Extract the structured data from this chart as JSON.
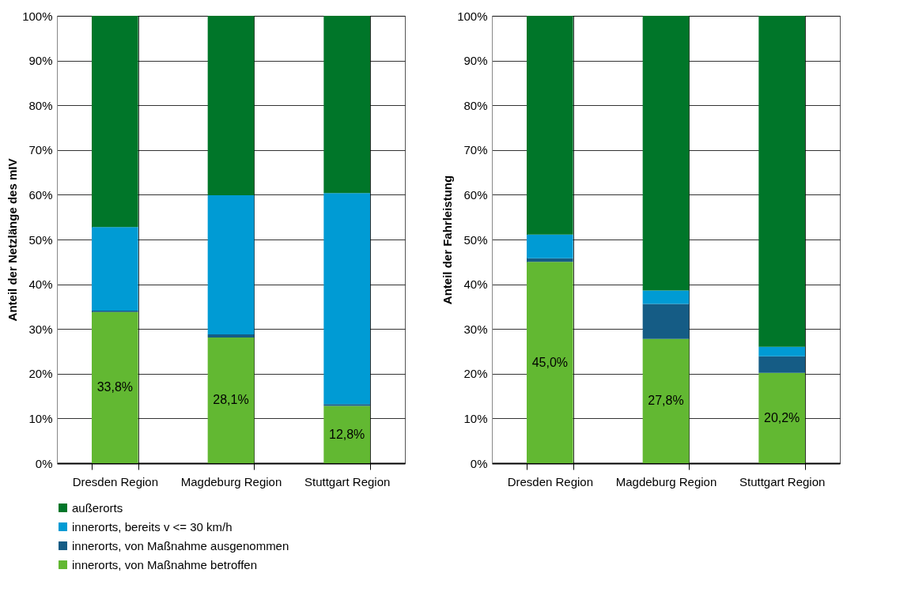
{
  "chart_data": [
    {
      "type": "bar",
      "stacked": true,
      "ylabel": "Anteil der Netzlänge des mIV",
      "categories": [
        "Dresden Region",
        "Magdeburg Region",
        "Stuttgart Region"
      ],
      "series": [
        {
          "name": "innerorts, von Maßnahme betroffen",
          "color": "#62b832",
          "values": [
            33.8,
            28.1,
            12.8
          ],
          "value_labels": [
            "33,8%",
            "28,1%",
            "12,8%"
          ]
        },
        {
          "name": "innerorts, von Maßnahme ausgenommen",
          "color": "#155c85",
          "values": [
            0.3,
            0.7,
            0.4
          ]
        },
        {
          "name": "innerorts, bereits v <= 30 km/h",
          "color": "#009bd4",
          "values": [
            18.7,
            31.1,
            47.2
          ]
        },
        {
          "name": "außerorts",
          "color": "#007629",
          "values": [
            47.2,
            40.1,
            39.6
          ]
        }
      ],
      "ylim": [
        0,
        100
      ],
      "yticks": [
        {
          "value": 0,
          "label": "0%"
        },
        {
          "value": 10,
          "label": "10%"
        },
        {
          "value": 20,
          "label": "20%"
        },
        {
          "value": 30,
          "label": "30%"
        },
        {
          "value": 40,
          "label": "40%"
        },
        {
          "value": 50,
          "label": "50%"
        },
        {
          "value": 60,
          "label": "60%"
        },
        {
          "value": 70,
          "label": "70%"
        },
        {
          "value": 80,
          "label": "80%"
        },
        {
          "value": 90,
          "label": "90%"
        },
        {
          "value": 100,
          "label": "100%"
        }
      ],
      "grid": true,
      "legend": "bottom"
    },
    {
      "type": "bar",
      "stacked": true,
      "ylabel": "Anteil der Fahrleistung",
      "categories": [
        "Dresden Region",
        "Magdeburg Region",
        "Stuttgart Region"
      ],
      "series": [
        {
          "color": "#62b832",
          "values": [
            45.0,
            27.8,
            20.2
          ],
          "value_labels": [
            "45,0%",
            "27,8%",
            "20,2%"
          ]
        },
        {
          "color": "#155c85",
          "values": [
            0.8,
            7.8,
            3.7
          ]
        },
        {
          "color": "#009bd4",
          "values": [
            5.3,
            3.0,
            2.1
          ]
        },
        {
          "color": "#007629",
          "values": [
            48.9,
            61.4,
            74.0
          ]
        }
      ],
      "ylim": [
        0,
        100
      ],
      "yticks": [
        {
          "value": 0,
          "label": "0%"
        },
        {
          "value": 10,
          "label": "10%"
        },
        {
          "value": 20,
          "label": "20%"
        },
        {
          "value": 30,
          "label": "30%"
        },
        {
          "value": 40,
          "label": "40%"
        },
        {
          "value": 50,
          "label": "50%"
        },
        {
          "value": 60,
          "label": "60%"
        },
        {
          "value": 70,
          "label": "70%"
        },
        {
          "value": 80,
          "label": "80%"
        },
        {
          "value": 90,
          "label": "90%"
        },
        {
          "value": 100,
          "label": "100%"
        }
      ],
      "grid": true
    }
  ]
}
